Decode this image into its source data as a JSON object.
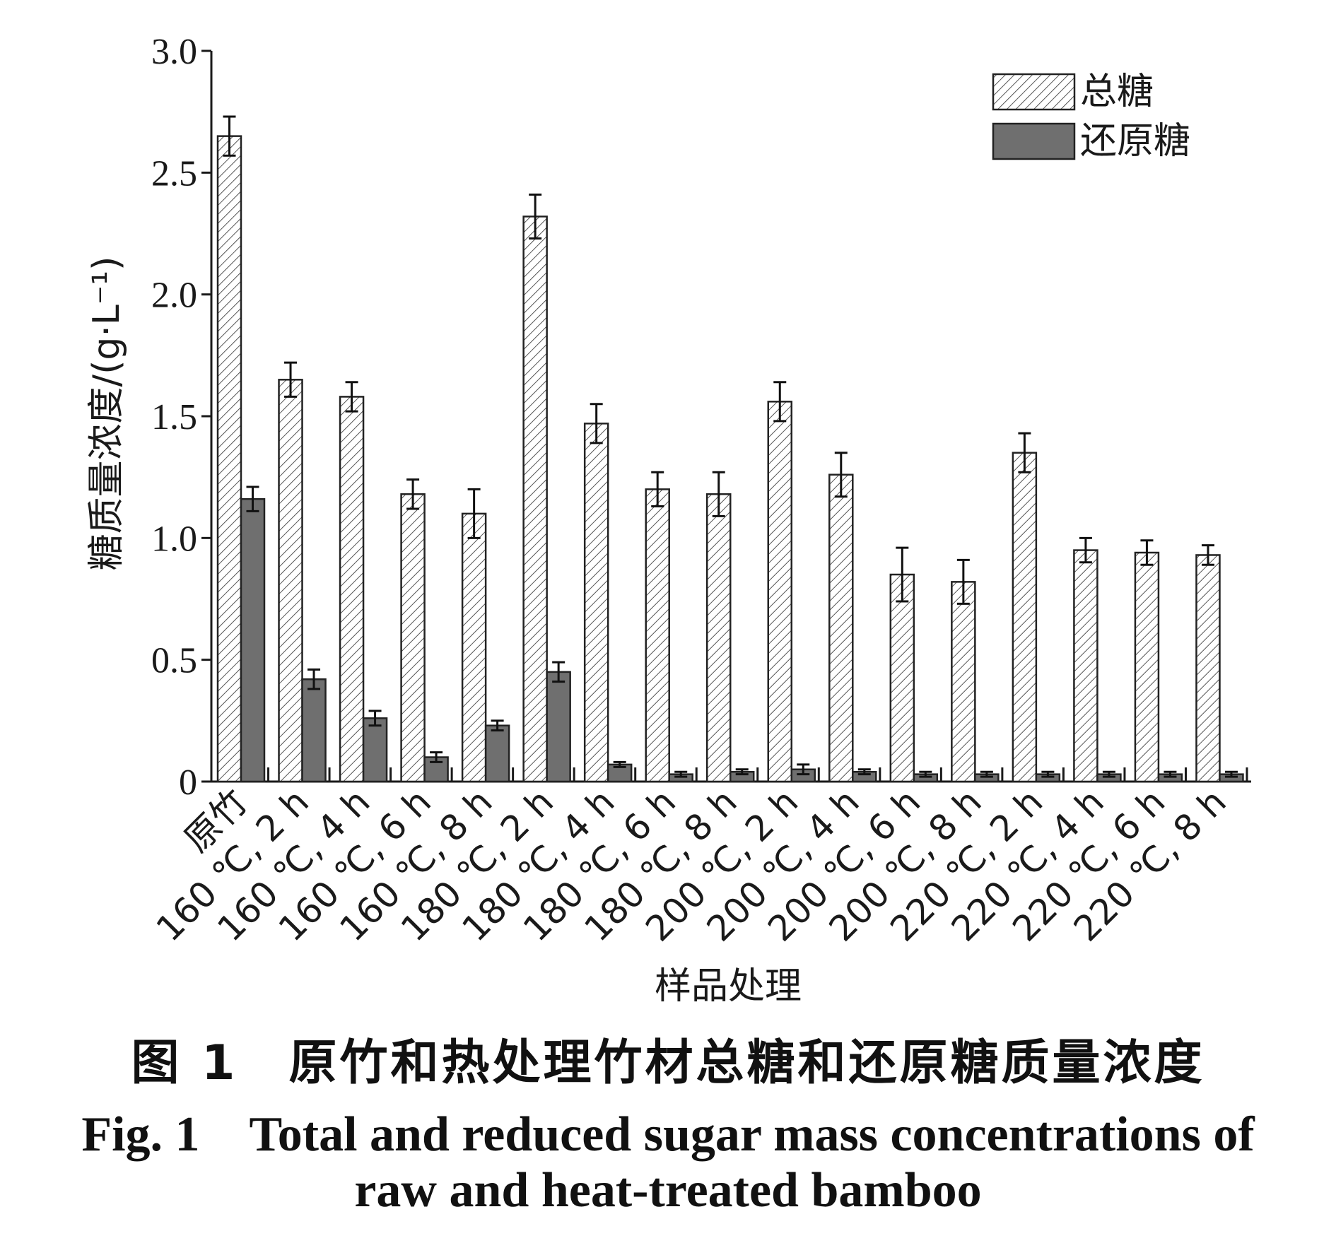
{
  "chart_data": {
    "type": "bar",
    "ylabel": "糖质量浓度/(g·L⁻¹)",
    "xlabel": "样品处理",
    "ylim": [
      0,
      3.0
    ],
    "yticks": [
      "0",
      "0.5",
      "1.0",
      "1.5",
      "2.0",
      "2.5",
      "3.0"
    ],
    "categories": [
      "原竹",
      "160 ℃, 2 h",
      "160 ℃, 4 h",
      "160 ℃, 6 h",
      "160 ℃, 8 h",
      "180 ℃, 2 h",
      "180 ℃, 4 h",
      "180 ℃, 6 h",
      "180 ℃, 8 h",
      "200 ℃, 2 h",
      "200 ℃, 4 h",
      "200 ℃, 6 h",
      "200 ℃, 8 h",
      "220 ℃, 2 h",
      "220 ℃, 4 h",
      "220 ℃, 6 h",
      "220 ℃, 8 h"
    ],
    "series": [
      {
        "name": "总糖",
        "pattern": "hatched",
        "values": [
          2.65,
          1.65,
          1.58,
          1.18,
          1.1,
          2.32,
          1.47,
          1.2,
          1.18,
          1.56,
          1.26,
          0.85,
          0.82,
          1.35,
          0.95,
          0.94,
          0.93
        ],
        "errors": [
          0.08,
          0.07,
          0.06,
          0.06,
          0.1,
          0.09,
          0.08,
          0.07,
          0.09,
          0.08,
          0.09,
          0.11,
          0.09,
          0.08,
          0.05,
          0.05,
          0.04
        ]
      },
      {
        "name": "还原糖",
        "pattern": "solid",
        "values": [
          1.16,
          0.42,
          0.26,
          0.1,
          0.23,
          0.45,
          0.07,
          0.03,
          0.04,
          0.05,
          0.04,
          0.03,
          0.03,
          0.03,
          0.03,
          0.03,
          0.03
        ],
        "errors": [
          0.05,
          0.04,
          0.03,
          0.02,
          0.02,
          0.04,
          0.01,
          0.01,
          0.01,
          0.02,
          0.01,
          0.01,
          0.01,
          0.01,
          0.01,
          0.01,
          0.01
        ]
      }
    ],
    "legend": "top-right",
    "grid": false
  },
  "captions": {
    "cn": "图 1　原竹和热处理竹材总糖和还原糖质量浓度",
    "en_line1": "Fig. 1　Total and reduced sugar mass concentrations of",
    "en_line2": "raw and heat-treated bamboo"
  },
  "colors": {
    "hatch_fill": "#ffffff",
    "hatch_line": "#555555",
    "solid_fill": "#6f6f6f",
    "axis": "#1a1a1a"
  }
}
